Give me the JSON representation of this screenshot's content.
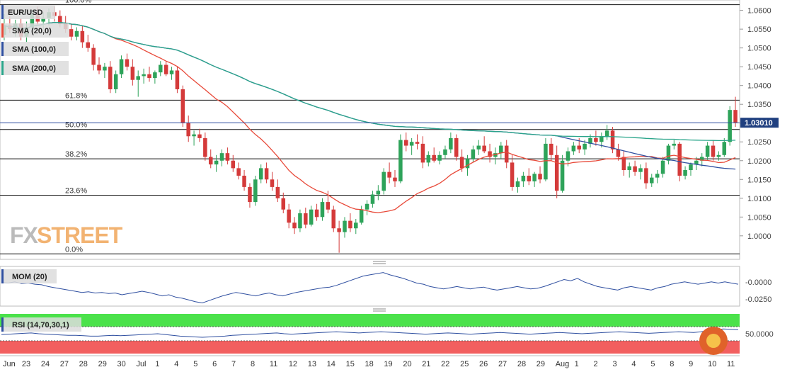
{
  "chart_data": {
    "type": "candlestick",
    "symbol": "EUR/USD",
    "last_price_label": "1.03010",
    "last_price": 1.0301,
    "ylim": [
      0.9945,
      1.062
    ],
    "y_ticks": [
      "1.0600",
      "1.0550",
      "1.0500",
      "1.0450",
      "1.0400",
      "1.0350",
      "1.0300",
      "1.0250",
      "1.0200",
      "1.0150",
      "1.0100",
      "1.0050",
      "1.0000"
    ],
    "x_labels": [
      "Jun",
      "23",
      "24",
      "27",
      "28",
      "29",
      "30",
      "Jul",
      "1",
      "4",
      "5",
      "6",
      "7",
      "8",
      "11",
      "12",
      "13",
      "14",
      "15",
      "18",
      "19",
      "20",
      "21",
      "22",
      "25",
      "26",
      "27",
      "28",
      "29",
      "Aug",
      "1",
      "2",
      "3",
      "4",
      "5",
      "8",
      "9",
      "10",
      "11"
    ],
    "fibonacci": [
      {
        "label": "61.8%",
        "value": 1.0361
      },
      {
        "label": "50.0%",
        "value": 1.0283
      },
      {
        "label": "38.2%",
        "value": 1.0205
      },
      {
        "label": "23.6%",
        "value": 1.0108
      },
      {
        "label": "0.0%",
        "value": 0.9952
      },
      {
        "label": "100.0%",
        "value": 1.0615
      }
    ],
    "legend": [
      {
        "name": "SMA (20,0)",
        "color": "#e84a3a"
      },
      {
        "name": "SMA (100,0)",
        "color": "#2f4fa0"
      },
      {
        "name": "SMA (200,0)",
        "color": "#2aa58a"
      }
    ],
    "indicators": [
      {
        "name": "MOM (20)",
        "ticks": [
          "-0.0000",
          "-0.0250"
        ],
        "ylim": [
          -0.033,
          0.03
        ]
      },
      {
        "name": "RSI (14,70,30,1)",
        "tick": "50.0000"
      }
    ],
    "candles": [
      [
        1.0535,
        1.059,
        1.052,
        1.056
      ],
      [
        1.056,
        1.0585,
        1.054,
        1.055
      ],
      [
        1.055,
        1.0575,
        1.053,
        1.0565
      ],
      [
        1.0565,
        1.058,
        1.052,
        1.053
      ],
      [
        1.053,
        1.057,
        1.0515,
        1.0555
      ],
      [
        1.0555,
        1.06,
        1.0545,
        1.059
      ],
      [
        1.059,
        1.061,
        1.056,
        1.057
      ],
      [
        1.057,
        1.0595,
        1.055,
        1.058
      ],
      [
        1.058,
        1.0605,
        1.056,
        1.0595
      ],
      [
        1.0595,
        1.061,
        1.057,
        1.0585
      ],
      [
        1.0585,
        1.06,
        1.0555,
        1.0565
      ],
      [
        1.0565,
        1.0585,
        1.054,
        1.055
      ],
      [
        1.055,
        1.0565,
        1.052,
        1.053
      ],
      [
        1.053,
        1.0555,
        1.052,
        1.0545
      ],
      [
        1.0545,
        1.056,
        1.05,
        1.0515
      ],
      [
        1.0515,
        1.0535,
        1.049,
        1.05
      ],
      [
        1.05,
        1.051,
        1.044,
        1.0455
      ],
      [
        1.0455,
        1.0475,
        1.043,
        1.044
      ],
      [
        1.044,
        1.046,
        1.042,
        1.045
      ],
      [
        1.045,
        1.0465,
        1.038,
        1.039
      ],
      [
        1.039,
        1.044,
        1.038,
        1.043
      ],
      [
        1.043,
        1.048,
        1.042,
        1.047
      ],
      [
        1.047,
        1.0485,
        1.044,
        1.045
      ],
      [
        1.045,
        1.047,
        1.04,
        1.0415
      ],
      [
        1.0415,
        1.044,
        1.037,
        1.0425
      ],
      [
        1.0425,
        1.0445,
        1.0405,
        1.043
      ],
      [
        1.043,
        1.045,
        1.041,
        1.042
      ],
      [
        1.042,
        1.044,
        1.0405,
        1.0435
      ],
      [
        1.0435,
        1.0465,
        1.0425,
        1.0455
      ],
      [
        1.0455,
        1.0465,
        1.0425,
        1.043
      ],
      [
        1.043,
        1.045,
        1.0415,
        1.044
      ],
      [
        1.044,
        1.045,
        1.038,
        1.039
      ],
      [
        1.039,
        1.04,
        1.029,
        1.03
      ],
      [
        1.03,
        1.032,
        1.025,
        1.0265
      ],
      [
        1.0265,
        1.028,
        1.024,
        1.027
      ],
      [
        1.027,
        1.0285,
        1.025,
        1.026
      ],
      [
        1.026,
        1.0275,
        1.02,
        1.021
      ],
      [
        1.021,
        1.023,
        1.018,
        1.019
      ],
      [
        1.019,
        1.0215,
        1.017,
        1.02
      ],
      [
        1.02,
        1.023,
        1.0185,
        1.022
      ],
      [
        1.022,
        1.0235,
        1.019,
        1.02
      ],
      [
        1.02,
        1.0215,
        1.017,
        1.018
      ],
      [
        1.018,
        1.0195,
        1.015,
        1.016
      ],
      [
        1.016,
        1.0175,
        1.012,
        1.013
      ],
      [
        1.013,
        1.014,
        1.0075,
        1.009
      ],
      [
        1.009,
        1.016,
        1.008,
        1.015
      ],
      [
        1.015,
        1.019,
        1.014,
        1.018
      ],
      [
        1.018,
        1.0195,
        1.014,
        1.015
      ],
      [
        1.015,
        1.017,
        1.012,
        1.013
      ],
      [
        1.013,
        1.015,
        1.009,
        1.01
      ],
      [
        1.01,
        1.0115,
        1.006,
        1.007
      ],
      [
        1.007,
        1.0085,
        1.002,
        1.0035
      ],
      [
        1.0035,
        1.005,
        1.0005,
        1.002
      ],
      [
        1.002,
        1.007,
        1.001,
        1.006
      ],
      [
        1.006,
        1.0075,
        1.002,
        1.003
      ],
      [
        1.003,
        1.008,
        1.0025,
        1.007
      ],
      [
        1.007,
        1.0085,
        1.004,
        1.005
      ],
      [
        1.005,
        1.01,
        1.004,
        1.009
      ],
      [
        1.009,
        1.012,
        1.006,
        1.007
      ],
      [
        1.007,
        1.008,
        1.001,
        1.002
      ],
      [
        1.002,
        1.004,
        0.9955,
        1.001
      ],
      [
        1.001,
        1.005,
        0.9995,
        1.004
      ],
      [
        1.004,
        1.006,
        1.001,
        1.002
      ],
      [
        1.002,
        1.0045,
        1.0005,
        1.0035
      ],
      [
        1.0035,
        1.008,
        1.003,
        1.007
      ],
      [
        1.007,
        1.0095,
        1.0055,
        1.0085
      ],
      [
        1.0085,
        1.012,
        1.0075,
        1.011
      ],
      [
        1.011,
        1.0135,
        1.0095,
        1.012
      ],
      [
        1.012,
        1.018,
        1.011,
        1.017
      ],
      [
        1.017,
        1.0195,
        1.014,
        1.0155
      ],
      [
        1.0155,
        1.0175,
        1.013,
        1.0145
      ],
      [
        1.0145,
        1.027,
        1.014,
        1.0255
      ],
      [
        1.0255,
        1.0275,
        1.0225,
        1.024
      ],
      [
        1.024,
        1.026,
        1.0215,
        1.025
      ],
      [
        1.025,
        1.027,
        1.023,
        1.0245
      ],
      [
        1.0245,
        1.0265,
        1.018,
        1.0195
      ],
      [
        1.0195,
        1.0225,
        1.0185,
        1.0215
      ],
      [
        1.0215,
        1.0235,
        1.0195,
        1.02
      ],
      [
        1.02,
        1.0225,
        1.019,
        1.0215
      ],
      [
        1.0215,
        1.024,
        1.0205,
        1.023
      ],
      [
        1.023,
        1.0275,
        1.022,
        1.026
      ],
      [
        1.026,
        1.027,
        1.02,
        1.021
      ],
      [
        1.021,
        1.023,
        1.017,
        1.018
      ],
      [
        1.018,
        1.0215,
        1.016,
        1.0205
      ],
      [
        1.0205,
        1.024,
        1.0195,
        1.023
      ],
      [
        1.023,
        1.0255,
        1.0215,
        1.024
      ],
      [
        1.024,
        1.0265,
        1.022,
        1.0225
      ],
      [
        1.0225,
        1.0245,
        1.0195,
        1.021
      ],
      [
        1.021,
        1.0235,
        1.019,
        1.022
      ],
      [
        1.022,
        1.025,
        1.0205,
        1.024
      ],
      [
        1.024,
        1.0255,
        1.018,
        1.0195
      ],
      [
        1.0195,
        1.0215,
        1.012,
        1.013
      ],
      [
        1.013,
        1.0155,
        1.0115,
        1.0145
      ],
      [
        1.0145,
        1.017,
        1.013,
        1.016
      ],
      [
        1.016,
        1.018,
        1.0135,
        1.0145
      ],
      [
        1.0145,
        1.017,
        1.013,
        1.0165
      ],
      [
        1.0165,
        1.0185,
        1.014,
        1.015
      ],
      [
        1.015,
        1.026,
        1.0145,
        1.0245
      ],
      [
        1.0245,
        1.026,
        1.02,
        1.0215
      ],
      [
        1.0215,
        1.024,
        1.01,
        1.012
      ],
      [
        1.012,
        1.0215,
        1.0115,
        1.02
      ],
      [
        1.02,
        1.0235,
        1.0185,
        1.0225
      ],
      [
        1.0225,
        1.025,
        1.0215,
        1.024
      ],
      [
        1.024,
        1.026,
        1.022,
        1.023
      ],
      [
        1.023,
        1.0255,
        1.0215,
        1.0245
      ],
      [
        1.0245,
        1.027,
        1.0235,
        1.026
      ],
      [
        1.026,
        1.028,
        1.024,
        1.025
      ],
      [
        1.025,
        1.0275,
        1.0235,
        1.0265
      ],
      [
        1.0265,
        1.0295,
        1.0255,
        1.028
      ],
      [
        1.028,
        1.029,
        1.022,
        1.023
      ],
      [
        1.023,
        1.0245,
        1.02,
        1.021
      ],
      [
        1.021,
        1.0225,
        1.016,
        1.0175
      ],
      [
        1.0175,
        1.0195,
        1.0155,
        1.0185
      ],
      [
        1.0185,
        1.02,
        1.016,
        1.017
      ],
      [
        1.017,
        1.019,
        1.015,
        1.018
      ],
      [
        1.018,
        1.0195,
        1.0125,
        1.014
      ],
      [
        1.014,
        1.0165,
        1.013,
        1.0155
      ],
      [
        1.0155,
        1.0175,
        1.014,
        1.0165
      ],
      [
        1.0165,
        1.021,
        1.0155,
        1.02
      ],
      [
        1.02,
        1.0245,
        1.019,
        1.024
      ],
      [
        1.024,
        1.0255,
        1.023,
        1.0245
      ],
      [
        1.0245,
        1.025,
        1.0145,
        1.016
      ],
      [
        1.016,
        1.0185,
        1.015,
        1.0175
      ],
      [
        1.0175,
        1.0195,
        1.016,
        1.019
      ],
      [
        1.019,
        1.021,
        1.0175,
        1.02
      ],
      [
        1.02,
        1.022,
        1.0185,
        1.021
      ],
      [
        1.021,
        1.025,
        1.02,
        1.024
      ],
      [
        1.024,
        1.0255,
        1.02,
        1.021
      ],
      [
        1.021,
        1.0225,
        1.02,
        1.0215
      ],
      [
        1.0215,
        1.026,
        1.021,
        1.025
      ],
      [
        1.025,
        1.0345,
        1.024,
        1.0335
      ],
      [
        1.0335,
        1.037,
        1.029,
        1.0301
      ]
    ],
    "mom": [
      0.005,
      0.004,
      0.006,
      0.003,
      0.004,
      0.002,
      0.001,
      -0.002,
      -0.004,
      -0.006,
      -0.008,
      -0.01,
      -0.012,
      -0.011,
      -0.013,
      -0.012,
      -0.014,
      -0.013,
      -0.016,
      -0.014,
      -0.012,
      -0.01,
      -0.012,
      -0.015,
      -0.018,
      -0.016,
      -0.02,
      -0.022,
      -0.025,
      -0.028,
      -0.03,
      -0.026,
      -0.022,
      -0.018,
      -0.015,
      -0.012,
      -0.014,
      -0.016,
      -0.018,
      -0.015,
      -0.013,
      -0.016,
      -0.018,
      -0.015,
      -0.012,
      -0.01,
      -0.008,
      -0.006,
      -0.004,
      -0.003,
      0.0,
      0.004,
      0.008,
      0.012,
      0.016,
      0.018,
      0.02,
      0.022,
      0.018,
      0.015,
      0.012,
      0.008,
      0.004,
      0.002,
      -0.002,
      -0.004,
      -0.006,
      -0.004,
      -0.002,
      -0.004,
      -0.006,
      -0.004,
      -0.003,
      -0.006,
      -0.008,
      -0.006,
      -0.004,
      -0.002,
      -0.004,
      -0.006,
      -0.005,
      -0.002,
      0.002,
      0.006,
      0.01,
      0.008,
      0.012,
      0.006,
      0.002,
      -0.002,
      -0.004,
      -0.006,
      -0.008,
      -0.004,
      -0.002,
      -0.004,
      -0.006,
      -0.008,
      -0.004,
      -0.002,
      0.002,
      0.004,
      0.006,
      0.004,
      0.002,
      0.004,
      0.006,
      0.004,
      0.006,
      0.004,
      0.002
    ],
    "rsi": [
      48,
      49,
      50,
      51,
      52,
      50,
      49,
      48,
      47,
      46,
      46,
      45,
      44,
      44,
      45,
      46,
      45,
      46,
      47,
      48,
      49,
      50,
      48,
      46,
      44,
      43,
      42,
      41,
      42,
      43,
      44,
      46,
      47,
      48,
      49,
      50,
      51,
      52,
      50,
      49,
      50,
      51,
      52,
      53,
      54,
      55,
      54,
      53,
      52,
      53,
      54,
      55,
      54,
      53,
      52,
      51,
      50,
      49,
      50,
      51,
      52,
      51,
      50,
      49,
      50,
      51,
      52,
      53,
      52,
      51,
      50,
      49,
      50,
      51,
      52,
      53,
      52,
      51,
      50,
      51,
      52,
      53,
      54,
      55,
      54,
      53,
      52,
      51,
      52,
      53,
      54,
      55,
      54,
      53,
      55,
      58,
      60,
      62,
      61,
      60
    ]
  }
}
